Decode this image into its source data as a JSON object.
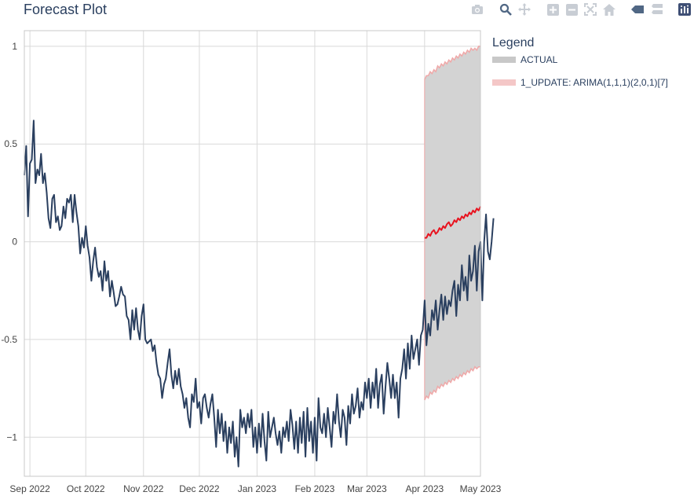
{
  "title": "Forecast Plot",
  "modebar": [
    {
      "name": "camera-icon"
    },
    {
      "name": "zoom-icon"
    },
    {
      "name": "pan-icon"
    },
    {
      "name": "zoom-in-icon"
    },
    {
      "name": "zoom-out-icon"
    },
    {
      "name": "autoscale-icon"
    },
    {
      "name": "reset-axes-icon"
    },
    {
      "name": "hover-closest-icon"
    },
    {
      "name": "hover-compare-icon"
    },
    {
      "name": "plotly-logo-icon"
    }
  ],
  "legend": {
    "title": "Legend",
    "items": [
      {
        "label": "ACTUAL",
        "color": "#c8c8c8"
      },
      {
        "label": "1_UPDATE: ARIMA(1,1,1)(2,0,1)[7]",
        "color": "#f4c7c7"
      }
    ]
  },
  "colors": {
    "actual": "#2a3f5f",
    "forecast": "#e8131f",
    "band_fill": "#d3d3d3",
    "band_edge": "#f0a8a8",
    "grid": "#d9d9d9",
    "axis": "#c8c8c8"
  },
  "chart_data": {
    "type": "line",
    "x_range": [
      "2022-08-29",
      "2023-05-01"
    ],
    "ylim": [
      -1.2,
      1.08
    ],
    "y_ticks": [
      1,
      0.5,
      0,
      -0.5,
      -1
    ],
    "y_tick_labels": [
      "1",
      "0.5",
      "0",
      "-0.5",
      "−1"
    ],
    "x_ticks": [
      "2022-09-01",
      "2022-10-01",
      "2022-11-01",
      "2022-12-01",
      "2023-01-01",
      "2023-02-01",
      "2023-03-01",
      "2023-04-01",
      "2023-05-01"
    ],
    "x_tick_labels": [
      "Sep 2022",
      "Oct 2022",
      "Nov 2022",
      "Dec 2022",
      "Jan 2023",
      "Feb 2023",
      "Mar 2023",
      "Apr 2023",
      "May 2023"
    ],
    "grid": true,
    "legend_position": "right",
    "actual": {
      "start": "2022-08-29",
      "step_days": 1,
      "values": [
        0.34,
        0.49,
        0.13,
        0.4,
        0.42,
        0.62,
        0.3,
        0.37,
        0.34,
        0.45,
        0.3,
        0.35,
        0.25,
        0.12,
        0.07,
        0.22,
        0.24,
        0.1,
        0.13,
        0.06,
        0.08,
        0.18,
        0.12,
        0.22,
        0.2,
        0.24,
        0.1,
        0.24,
        0.15,
        0.08,
        -0.06,
        0.02,
        -0.03,
        0.08,
        -0.02,
        -0.08,
        -0.2,
        -0.1,
        -0.03,
        -0.13,
        -0.18,
        -0.15,
        -0.25,
        -0.1,
        -0.2,
        -0.15,
        -0.28,
        -0.2,
        -0.26,
        -0.33,
        -0.32,
        -0.28,
        -0.23,
        -0.27,
        -0.28,
        -0.38,
        -0.4,
        -0.5,
        -0.35,
        -0.45,
        -0.34,
        -0.45,
        -0.5,
        -0.38,
        -0.32,
        -0.5,
        -0.52,
        -0.51,
        -0.5,
        -0.56,
        -0.53,
        -0.62,
        -0.68,
        -0.7,
        -0.8,
        -0.73,
        -0.7,
        -0.62,
        -0.55,
        -0.68,
        -0.75,
        -0.66,
        -0.73,
        -0.65,
        -0.74,
        -0.78,
        -0.85,
        -0.8,
        -0.9,
        -0.95,
        -0.78,
        -0.82,
        -0.7,
        -0.85,
        -0.82,
        -0.93,
        -0.8,
        -0.78,
        -0.85,
        -0.9,
        -0.83,
        -0.78,
        -0.9,
        -1.05,
        -0.86,
        -0.98,
        -0.88,
        -1.02,
        -0.92,
        -1.08,
        -0.95,
        -1.03,
        -0.92,
        -1.1,
        -1.0,
        -1.15,
        -0.86,
        -0.95,
        -0.9,
        -0.98,
        -0.88,
        -0.95,
        -0.86,
        -1.05,
        -0.95,
        -1.08,
        -0.93,
        -1.05,
        -0.88,
        -1.02,
        -1.12,
        -0.87,
        -1.0,
        -0.95,
        -0.9,
        -0.98,
        -1.04,
        -0.97,
        -1.08,
        -0.95,
        -1.0,
        -0.92,
        -1.02,
        -0.86,
        -0.94,
        -1.06,
        -0.92,
        -1.08,
        -0.9,
        -1.03,
        -0.87,
        -1.1,
        -0.85,
        -1.02,
        -0.92,
        -1.08,
        -0.9,
        -1.12,
        -0.8,
        -0.95,
        -0.98,
        -0.88,
        -1.0,
        -0.85,
        -0.95,
        -1.05,
        -0.87,
        -0.93,
        -0.78,
        -0.92,
        -1.0,
        -0.86,
        -0.9,
        -1.04,
        -0.84,
        -0.93,
        -0.78,
        -0.88,
        -0.84,
        -0.75,
        -0.9,
        -0.82,
        -0.86,
        -0.72,
        -0.8,
        -0.7,
        -0.85,
        -0.72,
        -0.8,
        -0.65,
        -0.85,
        -0.73,
        -0.68,
        -0.88,
        -0.74,
        -0.62,
        -0.7,
        -0.8,
        -0.68,
        -0.8,
        -0.72,
        -0.9,
        -0.7,
        -0.65,
        -0.55,
        -0.7,
        -0.52,
        -0.65,
        -0.48,
        -0.6,
        -0.55,
        -0.5,
        -0.63,
        -0.48,
        -0.45,
        -0.3,
        -0.53,
        -0.42,
        -0.48,
        -0.35,
        -0.4,
        -0.3,
        -0.45,
        -0.35,
        -0.27,
        -0.4,
        -0.28,
        -0.37,
        -0.3,
        -0.33,
        -0.25,
        -0.2,
        -0.38,
        -0.22,
        -0.3,
        -0.12,
        -0.25,
        -0.18,
        -0.3,
        -0.07,
        -0.2,
        -0.15,
        -0.02,
        -0.25,
        -0.05,
        0.0,
        -0.3,
        0.0,
        0.14,
        -0.05,
        -0.09,
        0.0,
        0.12
      ],
      "name": "ACTUAL"
    },
    "forecast": {
      "start": "2023-04-01",
      "step_days": 1,
      "name": "1_UPDATE: ARIMA(1,1,1)(2,0,1)[7]",
      "values": [
        0.02,
        0.02,
        0.04,
        0.03,
        0.05,
        0.06,
        0.04,
        0.05,
        0.07,
        0.06,
        0.08,
        0.07,
        0.09,
        0.1,
        0.08,
        0.09,
        0.11,
        0.1,
        0.12,
        0.11,
        0.13,
        0.12,
        0.14,
        0.13,
        0.15,
        0.14,
        0.16,
        0.15,
        0.17,
        0.16,
        0.18
      ],
      "upper": [
        0.83,
        0.85,
        0.85,
        0.87,
        0.86,
        0.88,
        0.87,
        0.9,
        0.89,
        0.91,
        0.9,
        0.92,
        0.91,
        0.93,
        0.92,
        0.94,
        0.93,
        0.95,
        0.94,
        0.96,
        0.95,
        0.97,
        0.96,
        0.98,
        0.97,
        0.99,
        0.98,
        0.99,
        0.98,
        1.0,
        1.0
      ],
      "lower": [
        -0.81,
        -0.79,
        -0.8,
        -0.77,
        -0.78,
        -0.76,
        -0.77,
        -0.74,
        -0.75,
        -0.73,
        -0.74,
        -0.72,
        -0.73,
        -0.71,
        -0.72,
        -0.7,
        -0.71,
        -0.69,
        -0.7,
        -0.68,
        -0.69,
        -0.67,
        -0.68,
        -0.66,
        -0.67,
        -0.65,
        -0.66,
        -0.64,
        -0.65,
        -0.64,
        -0.64
      ]
    }
  }
}
